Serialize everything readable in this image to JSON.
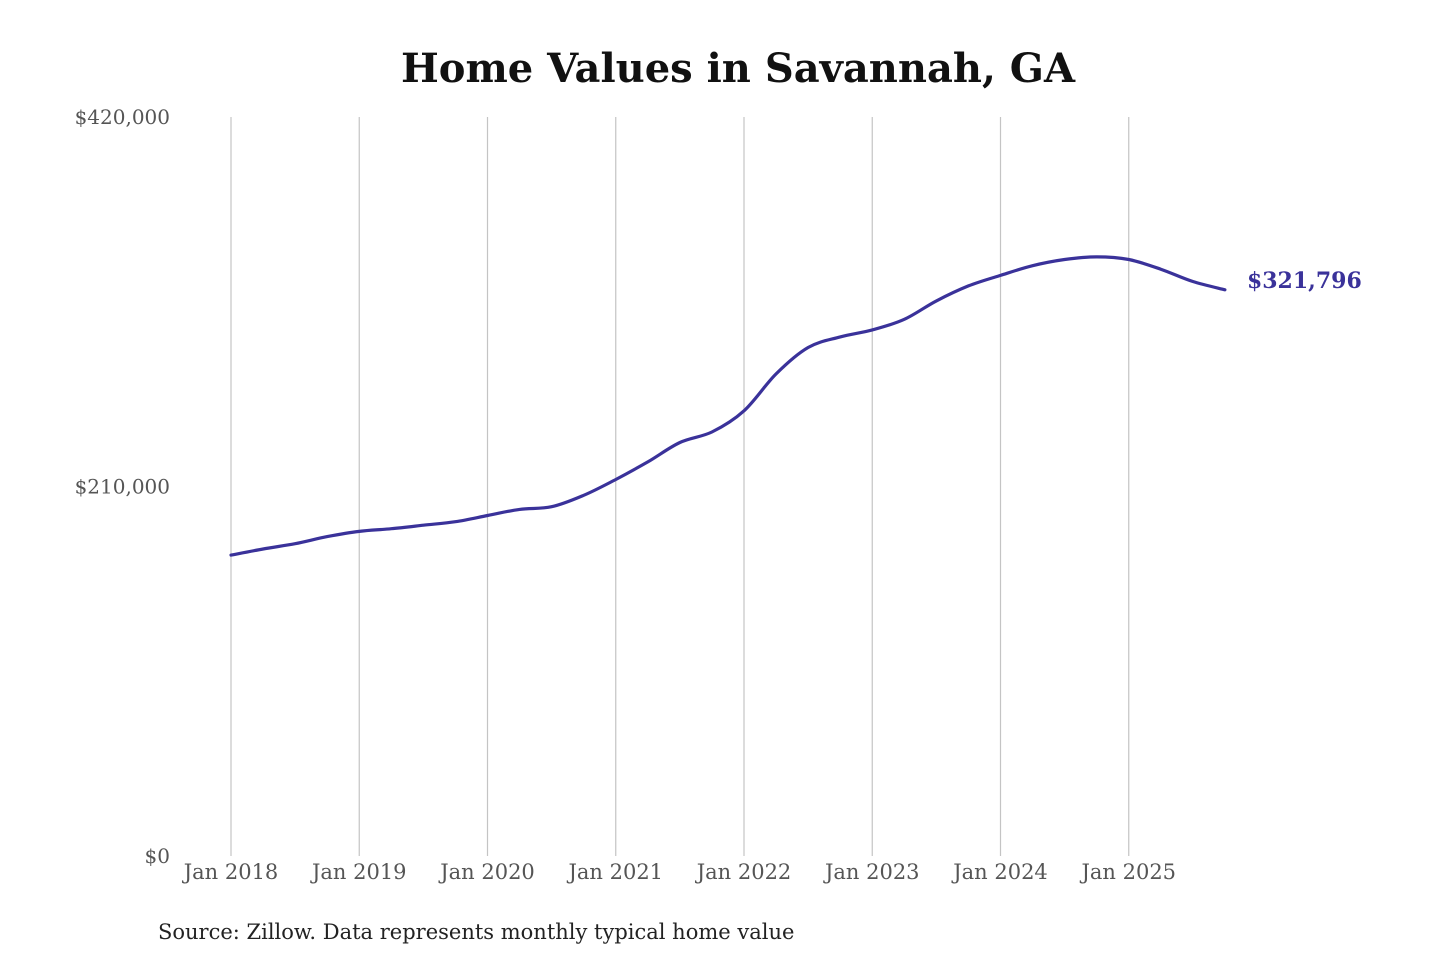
{
  "chart_data": {
    "type": "line",
    "title": "Home Values in Savannah, GA",
    "xlabel": "",
    "ylabel": "",
    "ylim": [
      0,
      420000
    ],
    "y_ticks": [
      {
        "value": 0,
        "label": "$0"
      },
      {
        "value": 210000,
        "label": "$210,000"
      },
      {
        "value": 420000,
        "label": "$420,000"
      }
    ],
    "x_ticks": [
      {
        "year": 2018,
        "label": "Jan 2018"
      },
      {
        "year": 2019,
        "label": "Jan 2019"
      },
      {
        "year": 2020,
        "label": "Jan 2020"
      },
      {
        "year": 2021,
        "label": "Jan 2021"
      },
      {
        "year": 2022,
        "label": "Jan 2022"
      },
      {
        "year": 2023,
        "label": "Jan 2023"
      },
      {
        "year": 2024,
        "label": "Jan 2024"
      },
      {
        "year": 2025,
        "label": "Jan 2025"
      }
    ],
    "grid": "vertical",
    "legend": "none",
    "series": [
      {
        "color": "#3a329a",
        "end_label": "$321,796",
        "points": [
          {
            "x": "2018-01",
            "y": 171000
          },
          {
            "x": "2018-04",
            "y": 174500
          },
          {
            "x": "2018-07",
            "y": 177500
          },
          {
            "x": "2018-10",
            "y": 181500
          },
          {
            "x": "2019-01",
            "y": 184500
          },
          {
            "x": "2019-04",
            "y": 186000
          },
          {
            "x": "2019-07",
            "y": 188000
          },
          {
            "x": "2019-10",
            "y": 190000
          },
          {
            "x": "2020-01",
            "y": 193500
          },
          {
            "x": "2020-04",
            "y": 197000
          },
          {
            "x": "2020-07",
            "y": 198500
          },
          {
            "x": "2020-10",
            "y": 205000
          },
          {
            "x": "2021-01",
            "y": 214000
          },
          {
            "x": "2021-04",
            "y": 224000
          },
          {
            "x": "2021-07",
            "y": 235000
          },
          {
            "x": "2021-10",
            "y": 241000
          },
          {
            "x": "2022-01",
            "y": 253000
          },
          {
            "x": "2022-04",
            "y": 274000
          },
          {
            "x": "2022-07",
            "y": 289000
          },
          {
            "x": "2022-10",
            "y": 295000
          },
          {
            "x": "2023-01",
            "y": 299000
          },
          {
            "x": "2023-04",
            "y": 305000
          },
          {
            "x": "2023-07",
            "y": 315500
          },
          {
            "x": "2023-10",
            "y": 324000
          },
          {
            "x": "2024-01",
            "y": 330000
          },
          {
            "x": "2024-04",
            "y": 335500
          },
          {
            "x": "2024-07",
            "y": 339000
          },
          {
            "x": "2024-10",
            "y": 340500
          },
          {
            "x": "2025-01",
            "y": 339000
          },
          {
            "x": "2025-04",
            "y": 333500
          },
          {
            "x": "2025-07",
            "y": 326500
          },
          {
            "x": "2025-10",
            "y": 321796
          }
        ]
      }
    ]
  },
  "footer": {
    "source": "Source: Zillow. Data represents monthly typical home value"
  }
}
